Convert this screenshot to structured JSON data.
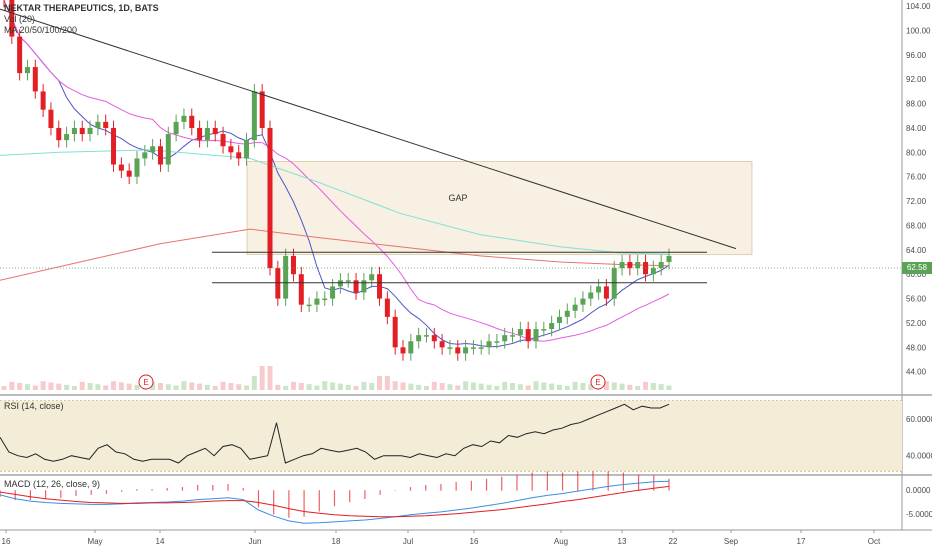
{
  "header": {
    "symbol_line": "NEKTAR THERAPEUTICS, 1D, BATS",
    "indicator1": "Vol (20)",
    "indicator2": "MA 20/50/100/200"
  },
  "panes": {
    "rsi_label": "RSI (14, close)",
    "macd_label": "MACD (12, 26, close, 9)"
  },
  "annotations": {
    "gap_label": "GAP",
    "earnings_marker": "E"
  },
  "colors": {
    "bull": "#5aa356",
    "bear": "#e31e24",
    "ma20": "#5155c7",
    "ma50": "#e45ee2",
    "ma100": "#7fe1d5",
    "ma200": "#e6746c",
    "gap_fill": "#f7eedd",
    "rsi_fill": "#f3ecd7",
    "macd_line": "#3b8ee5",
    "signal_line": "#e31e24",
    "last_price_bg": "#5aa356"
  },
  "chart_data": [
    {
      "type": "candlestick",
      "title": "NEKTAR THERAPEUTICS, 1D, BATS",
      "x_ticks": [
        "16",
        "May",
        "14",
        "Jun",
        "18",
        "Jul",
        "16",
        "Aug",
        "13",
        "22",
        "Sep",
        "17",
        "Oct"
      ],
      "y_ticks": [
        "104.00",
        "100.00",
        "96.00",
        "92.00",
        "88.00",
        "84.00",
        "80.00",
        "76.00",
        "72.00",
        "68.00",
        "64.00",
        "60.00",
        "56.00",
        "52.00",
        "48.00",
        "44.00"
      ],
      "ylim": [
        41,
        105
      ],
      "last_price": "62.58",
      "candles_close": [
        105,
        99,
        93,
        94,
        90,
        87,
        84,
        82,
        83,
        84,
        83,
        84,
        85,
        84,
        78,
        77,
        76,
        79,
        80,
        81,
        78,
        83,
        85,
        86,
        84,
        82,
        84,
        83,
        81,
        80,
        79,
        82,
        90,
        84,
        61,
        56,
        63,
        60,
        55,
        55,
        56,
        56,
        58,
        59,
        59,
        57,
        59,
        60,
        56,
        53,
        48,
        47,
        49,
        50,
        50,
        49,
        48,
        48,
        47,
        48,
        48,
        48,
        49,
        49,
        50,
        50,
        51,
        49,
        51,
        51,
        52,
        53,
        54,
        55,
        56,
        57,
        58,
        56,
        61,
        62,
        61,
        62,
        60,
        61,
        62,
        63
      ],
      "moving_averages": [
        "MA 20",
        "MA 50",
        "MA 100",
        "MA 200"
      ],
      "earnings_markers": [
        "E",
        "E"
      ],
      "annotations": [
        "GAP"
      ]
    },
    {
      "type": "line",
      "title": "RSI (14, close)",
      "y_ticks": [
        "60.0000",
        "40.0000"
      ],
      "ylim": [
        30,
        72
      ],
      "values": [
        50,
        42,
        40,
        39,
        41,
        38,
        37,
        38,
        40,
        39,
        38,
        44,
        46,
        42,
        41,
        38,
        37,
        38,
        38,
        38,
        36,
        40,
        42,
        44,
        40,
        45,
        46,
        44,
        38,
        39,
        40,
        58,
        36,
        38,
        40,
        41,
        44,
        43,
        42,
        43,
        44,
        42,
        38,
        40,
        40,
        40,
        39,
        41,
        40,
        39,
        41,
        40,
        44,
        46,
        45,
        48,
        47,
        51,
        50,
        52,
        53,
        52,
        54,
        55,
        57,
        58,
        60,
        62,
        64,
        66,
        68,
        65,
        67,
        66,
        66,
        68
      ]
    },
    {
      "type": "line",
      "title": "MACD (12, 26, close, 9)",
      "y_ticks": [
        "0.0000",
        "-5.0000"
      ],
      "ylim": [
        -8,
        3
      ],
      "series": [
        {
          "values": [
            -1.0,
            -1.8,
            -2.3,
            -2.6,
            -2.8,
            -2.9,
            -3.0,
            -3.0,
            -2.9,
            -2.7,
            -2.6,
            -2.5,
            -2.3,
            -2.0,
            -1.8,
            -1.6,
            -2.0,
            -4.2,
            -5.5,
            -6.5,
            -7.0,
            -6.9,
            -6.7,
            -6.5,
            -6.3,
            -6.0,
            -5.6,
            -5.2,
            -4.9,
            -4.6,
            -4.2,
            -3.8,
            -3.3,
            -2.8,
            -2.2,
            -1.6,
            -1.1,
            -0.7,
            -0.2,
            0.3,
            0.8,
            1.2,
            1.5,
            1.8,
            1.9
          ]
        },
        {
          "values": [
            -0.4,
            -0.9,
            -1.4,
            -1.8,
            -2.1,
            -2.4,
            -2.6,
            -2.7,
            -2.8,
            -2.8,
            -2.7,
            -2.7,
            -2.6,
            -2.5,
            -2.3,
            -2.2,
            -2.2,
            -2.6,
            -3.2,
            -3.9,
            -4.5,
            -4.9,
            -5.2,
            -5.4,
            -5.5,
            -5.6,
            -5.6,
            -5.5,
            -5.4,
            -5.2,
            -5.0,
            -4.7,
            -4.4,
            -4.1,
            -3.7,
            -3.3,
            -2.9,
            -2.4,
            -2.0,
            -1.5,
            -1.0,
            -0.5,
            0.0,
            0.4,
            0.8
          ]
        }
      ]
    }
  ]
}
